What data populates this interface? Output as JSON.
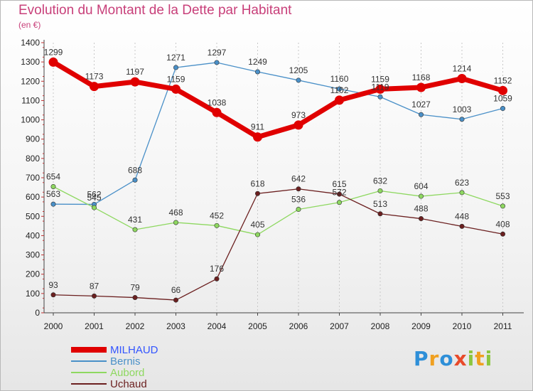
{
  "chart_data": {
    "type": "line",
    "title": "Evolution du Montant de la Dette par Habitant",
    "subtitle": "(en €)",
    "xlabel": "",
    "ylabel": "",
    "ylim": [
      0,
      1400
    ],
    "yticks": [
      0,
      100,
      200,
      300,
      400,
      500,
      600,
      700,
      800,
      900,
      1000,
      1100,
      1200,
      1300,
      1400
    ],
    "grid": "vertical",
    "legend_position": "bottom-left",
    "categories": [
      "2000",
      "2001",
      "2002",
      "2003",
      "2004",
      "2005",
      "2006",
      "2007",
      "2008",
      "2009",
      "2010",
      "2011"
    ],
    "series": [
      {
        "name": "MILHAUD",
        "color": "#e00000",
        "values": [
          1299,
          1173,
          1197,
          1159,
          1038,
          911,
          973,
          1102,
          1159,
          1168,
          1214,
          1152
        ]
      },
      {
        "name": "Bernis",
        "color": "#4a90c8",
        "values": [
          563,
          562,
          688,
          1271,
          1297,
          1249,
          1205,
          1160,
          1119,
          1027,
          1003,
          1059
        ]
      },
      {
        "name": "Aubord",
        "color": "#8ed860",
        "values": [
          654,
          545,
          431,
          468,
          452,
          405,
          536,
          572,
          632,
          604,
          623,
          553
        ]
      },
      {
        "name": "Uchaud",
        "color": "#6b1f1f",
        "values": [
          93,
          87,
          79,
          66,
          176,
          618,
          642,
          615,
          513,
          488,
          448,
          408
        ]
      }
    ]
  },
  "logo": {
    "text": "Proxiti",
    "letters": [
      {
        "ch": "P",
        "color": "#2e8fd8"
      },
      {
        "ch": "r",
        "color": "#f0a020"
      },
      {
        "ch": "o",
        "color": "#2e8fd8"
      },
      {
        "ch": "x",
        "color": "#e84a2a"
      },
      {
        "ch": "i",
        "color": "#8cc63f"
      },
      {
        "ch": "t",
        "color": "#f0a020"
      },
      {
        "ch": "i",
        "color": "#8cc63f"
      }
    ]
  }
}
